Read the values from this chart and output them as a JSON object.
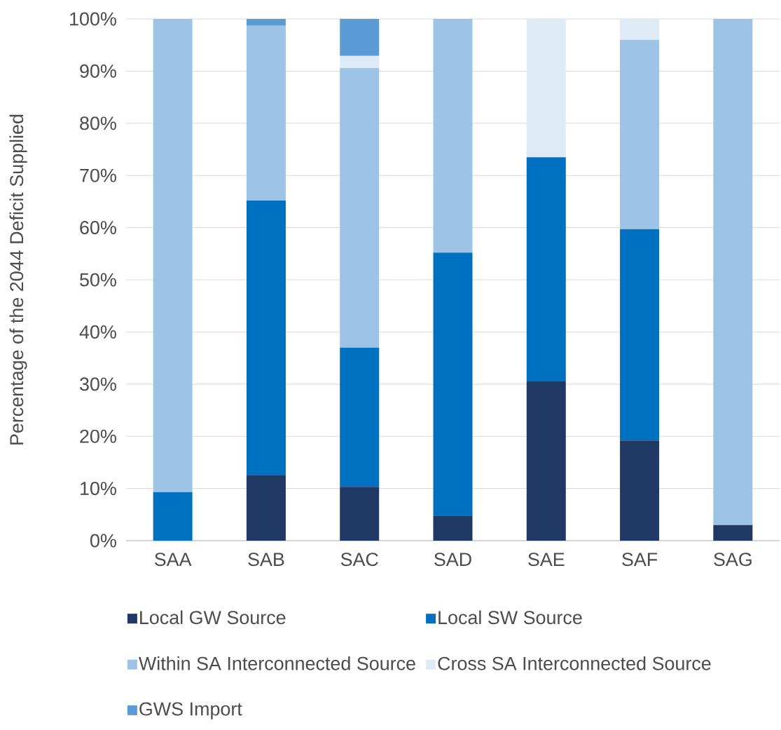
{
  "chart_data": {
    "type": "bar",
    "stacked": true,
    "ylabel": "Percentage of the 2044 Deficit Supplied",
    "categories": [
      "SAA",
      "SAB",
      "SAC",
      "SAD",
      "SAE",
      "SAF",
      "SAG"
    ],
    "series": [
      {
        "name": "Local GW Source",
        "color": "#1f3864",
        "values": [
          0,
          12.6,
          10.3,
          4.8,
          30.5,
          19.2,
          3.0
        ]
      },
      {
        "name": "Local SW Source",
        "color": "#0070c0",
        "values": [
          9.3,
          52.6,
          26.7,
          50.4,
          43.0,
          40.5,
          0
        ]
      },
      {
        "name": "Within SA Interconnected Source",
        "color": "#9dc3e6",
        "values": [
          90.7,
          33.5,
          53.6,
          44.8,
          0,
          36.3,
          97.0
        ]
      },
      {
        "name": "Cross SA Interconnected Source",
        "color": "#deebf7",
        "values": [
          0,
          0,
          2.3,
          0,
          26.5,
          4.0,
          0
        ]
      },
      {
        "name": "GWS Import",
        "color": "#5b9bd5",
        "values": [
          0,
          1.3,
          7.1,
          0,
          0,
          0,
          0
        ]
      }
    ],
    "ylim": [
      0,
      100
    ],
    "yticks": [
      {
        "value": 0,
        "label": "0%"
      },
      {
        "value": 10,
        "label": "10%"
      },
      {
        "value": 20,
        "label": "20%"
      },
      {
        "value": 30,
        "label": "30%"
      },
      {
        "value": 40,
        "label": "40%"
      },
      {
        "value": 50,
        "label": "50%"
      },
      {
        "value": 60,
        "label": "60%"
      },
      {
        "value": 70,
        "label": "70%"
      },
      {
        "value": 80,
        "label": "80%"
      },
      {
        "value": 90,
        "label": "90%"
      },
      {
        "value": 100,
        "label": "100%"
      }
    ],
    "grid": "y",
    "legend": "bottom"
  }
}
